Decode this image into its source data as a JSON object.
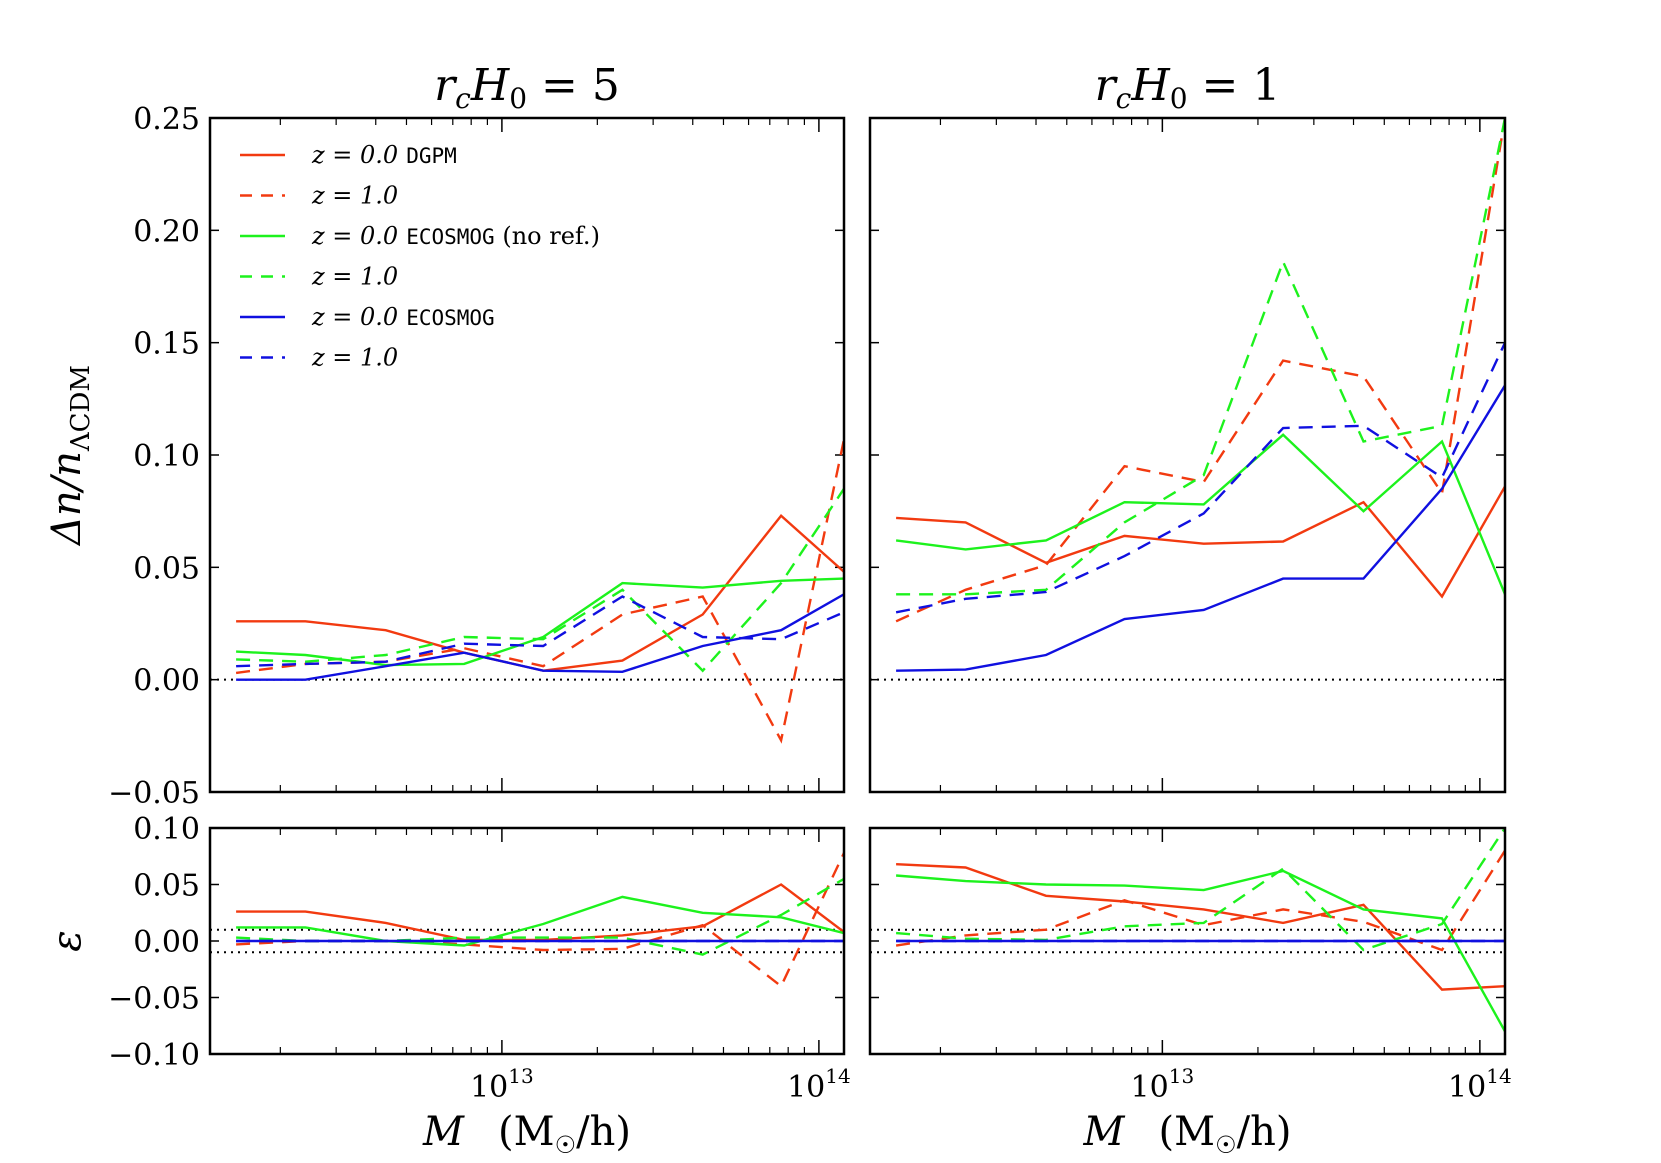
{
  "chart_data": {
    "type": "line",
    "xscale": "log",
    "xlim": [
      1200000000000.0,
      120000000000000.0
    ],
    "x": [
      1450000000000.0,
      2400000000000.0,
      4300000000000.0,
      7600000000000.0,
      13500000000000.0,
      24000000000000.0,
      43000000000000.0,
      76000000000000.0,
      120000000000000.0
    ],
    "xlabel_parts": [
      "M",
      "(M",
      "☉",
      "/h)"
    ],
    "xticks": [
      {
        "value": 10000000000000.0,
        "base": "10",
        "exp": "13"
      },
      {
        "value": 100000000000000.0,
        "base": "10",
        "exp": "14"
      }
    ],
    "top": {
      "ylim": [
        -0.05,
        0.25
      ],
      "yticks": [
        "−0.05",
        "0.00",
        "0.05",
        "0.10",
        "0.15",
        "0.20",
        "0.25"
      ],
      "ytick_values": [
        -0.05,
        0.0,
        0.05,
        0.1,
        0.15,
        0.2,
        0.25
      ],
      "ylabel_parts": [
        "Δn/n",
        "ΛCDM"
      ],
      "reference_lines": [
        0.0
      ]
    },
    "bottom": {
      "ylim": [
        -0.1,
        0.1
      ],
      "yticks": [
        "−0.10",
        "−0.05",
        "0.00",
        "0.05",
        "0.10"
      ],
      "ytick_values": [
        -0.1,
        -0.05,
        0.0,
        0.05,
        0.1
      ],
      "ylabel": "ε",
      "reference_lines": [
        0.01,
        -0.01
      ]
    },
    "colors": {
      "DGPM": "#f23a10",
      "ECOSMOG_noref": "#1df21d",
      "ECOSMOG": "#1010e0"
    },
    "legend": {
      "placement": "upper-left",
      "entries": [
        {
          "z": "z = 0.0",
          "code": "DGPM",
          "suffix": "",
          "color": "#f23a10",
          "dash": "solid"
        },
        {
          "z": "z = 1.0",
          "code": "",
          "suffix": "",
          "color": "#f23a10",
          "dash": "dashed"
        },
        {
          "z": "z = 0.0",
          "code": "ECOSMOG",
          "suffix": " (no ref.)",
          "color": "#1df21d",
          "dash": "solid"
        },
        {
          "z": "z = 1.0",
          "code": "",
          "suffix": "",
          "color": "#1df21d",
          "dash": "dashed"
        },
        {
          "z": "z = 0.0",
          "code": "ECOSMOG",
          "suffix": "",
          "color": "#1010e0",
          "dash": "solid"
        },
        {
          "z": "z = 1.0",
          "code": "",
          "suffix": "",
          "color": "#1010e0",
          "dash": "dashed"
        }
      ]
    },
    "panels": [
      {
        "title_parts": [
          "r",
          "c",
          "H",
          "0",
          " = 5"
        ],
        "top_series": [
          {
            "name": "z=0.0 DGPM",
            "color": "#f23a10",
            "dash": "solid",
            "values": [
              0.026,
              0.026,
              0.022,
              0.012,
              0.004,
              0.0085,
              0.029,
              0.073,
              0.048
            ]
          },
          {
            "name": "z=1.0 DGPM",
            "color": "#f23a10",
            "dash": "dashed",
            "values": [
              0.003,
              0.007,
              0.008,
              0.014,
              0.006,
              0.029,
              0.037,
              -0.027,
              0.107
            ]
          },
          {
            "name": "z=0.0 ECOSMOG (no ref.)",
            "color": "#1df21d",
            "dash": "solid",
            "values": [
              0.0125,
              0.011,
              0.0065,
              0.007,
              0.019,
              0.043,
              0.041,
              0.044,
              0.045
            ]
          },
          {
            "name": "z=1.0 ECOSMOG (no ref.)",
            "color": "#1df21d",
            "dash": "dashed",
            "values": [
              0.009,
              0.008,
              0.011,
              0.019,
              0.018,
              0.04,
              0.004,
              0.043,
              0.085
            ]
          },
          {
            "name": "z=0.0 ECOSMOG",
            "color": "#1010e0",
            "dash": "solid",
            "values": [
              0.0,
              0.0,
              0.006,
              0.012,
              0.004,
              0.0035,
              0.015,
              0.022,
              0.038
            ]
          },
          {
            "name": "z=1.0 ECOSMOG",
            "color": "#1010e0",
            "dash": "dashed",
            "values": [
              0.006,
              0.007,
              0.008,
              0.016,
              0.015,
              0.037,
              0.019,
              0.018,
              0.03
            ]
          }
        ],
        "bottom_series": [
          {
            "name": "z=0.0 DGPM",
            "color": "#f23a10",
            "dash": "solid",
            "values": [
              0.026,
              0.026,
              0.016,
              0.001,
              0.001,
              0.005,
              0.013,
              0.05,
              0.008
            ]
          },
          {
            "name": "z=1.0 DGPM",
            "color": "#f23a10",
            "dash": "dashed",
            "values": [
              -0.003,
              0.0,
              0.0,
              -0.003,
              -0.008,
              -0.007,
              0.014,
              -0.04,
              0.078
            ]
          },
          {
            "name": "z=0.0 ECOSMOG (no ref.)",
            "color": "#1df21d",
            "dash": "solid",
            "values": [
              0.012,
              0.012,
              0.0,
              -0.004,
              0.015,
              0.039,
              0.025,
              0.021,
              0.007
            ]
          },
          {
            "name": "z=1.0 ECOSMOG (no ref.)",
            "color": "#1df21d",
            "dash": "dashed",
            "values": [
              0.003,
              0.0,
              0.0,
              0.003,
              0.003,
              0.003,
              -0.012,
              0.023,
              0.055
            ]
          },
          {
            "name": "z=0.0 ECOSMOG",
            "color": "#1010e0",
            "dash": "solid",
            "values": [
              0.0,
              0.0,
              0.0,
              0.0,
              0.0,
              0.0,
              0.0,
              0.0,
              0.0
            ]
          },
          {
            "name": "z=1.0 ECOSMOG",
            "color": "#1010e0",
            "dash": "dashed",
            "values": [
              0.0,
              0.0,
              0.0,
              0.0,
              0.0,
              0.0,
              0.0,
              0.0,
              0.0
            ]
          }
        ]
      },
      {
        "title_parts": [
          "r",
          "c",
          "H",
          "0",
          " = 1"
        ],
        "top_series": [
          {
            "name": "z=0.0 DGPM",
            "color": "#f23a10",
            "dash": "solid",
            "values": [
              0.072,
              0.07,
              0.052,
              0.064,
              0.0605,
              0.0615,
              0.079,
              0.037,
              0.086
            ]
          },
          {
            "name": "z=1.0 DGPM",
            "color": "#f23a10",
            "dash": "dashed",
            "values": [
              0.026,
              0.04,
              0.051,
              0.095,
              0.088,
              0.142,
              0.135,
              0.083,
              0.25
            ]
          },
          {
            "name": "z=0.0 ECOSMOG (no ref.)",
            "color": "#1df21d",
            "dash": "solid",
            "values": [
              0.062,
              0.058,
              0.062,
              0.079,
              0.078,
              0.109,
              0.075,
              0.106,
              0.038
            ]
          },
          {
            "name": "z=1.0 ECOSMOG (no ref.)",
            "color": "#1df21d",
            "dash": "dashed",
            "values": [
              0.038,
              0.038,
              0.04,
              0.07,
              0.091,
              0.186,
              0.106,
              0.113,
              0.25
            ]
          },
          {
            "name": "z=0.0 ECOSMOG",
            "color": "#1010e0",
            "dash": "solid",
            "values": [
              0.004,
              0.0045,
              0.011,
              0.027,
              0.031,
              0.045,
              0.045,
              0.085,
              0.131
            ]
          },
          {
            "name": "z=1.0 ECOSMOG",
            "color": "#1010e0",
            "dash": "dashed",
            "values": [
              0.03,
              0.036,
              0.039,
              0.055,
              0.074,
              0.112,
              0.113,
              0.09,
              0.15
            ]
          }
        ],
        "bottom_series": [
          {
            "name": "z=0.0 DGPM",
            "color": "#f23a10",
            "dash": "solid",
            "values": [
              0.068,
              0.065,
              0.04,
              0.035,
              0.028,
              0.016,
              0.032,
              -0.043,
              -0.04
            ]
          },
          {
            "name": "z=1.0 DGPM",
            "color": "#f23a10",
            "dash": "dashed",
            "values": [
              -0.004,
              0.005,
              0.01,
              0.036,
              0.014,
              0.028,
              0.017,
              -0.008,
              0.08
            ]
          },
          {
            "name": "z=0.0 ECOSMOG (no ref.)",
            "color": "#1df21d",
            "dash": "solid",
            "values": [
              0.058,
              0.053,
              0.05,
              0.049,
              0.045,
              0.062,
              0.028,
              0.02,
              -0.08
            ]
          },
          {
            "name": "z=1.0 ECOSMOG (no ref.)",
            "color": "#1df21d",
            "dash": "dashed",
            "values": [
              0.007,
              0.002,
              0.001,
              0.013,
              0.016,
              0.064,
              -0.008,
              0.015,
              0.1
            ]
          },
          {
            "name": "z=0.0 ECOSMOG",
            "color": "#1010e0",
            "dash": "solid",
            "values": [
              0.0,
              0.0,
              0.0,
              0.0,
              0.0,
              0.0,
              0.0,
              0.0,
              0.0
            ]
          },
          {
            "name": "z=1.0 ECOSMOG",
            "color": "#1010e0",
            "dash": "dashed",
            "values": [
              0.0,
              0.0,
              0.0,
              0.0,
              0.0,
              0.0,
              0.0,
              0.0,
              0.0
            ]
          }
        ]
      }
    ]
  }
}
